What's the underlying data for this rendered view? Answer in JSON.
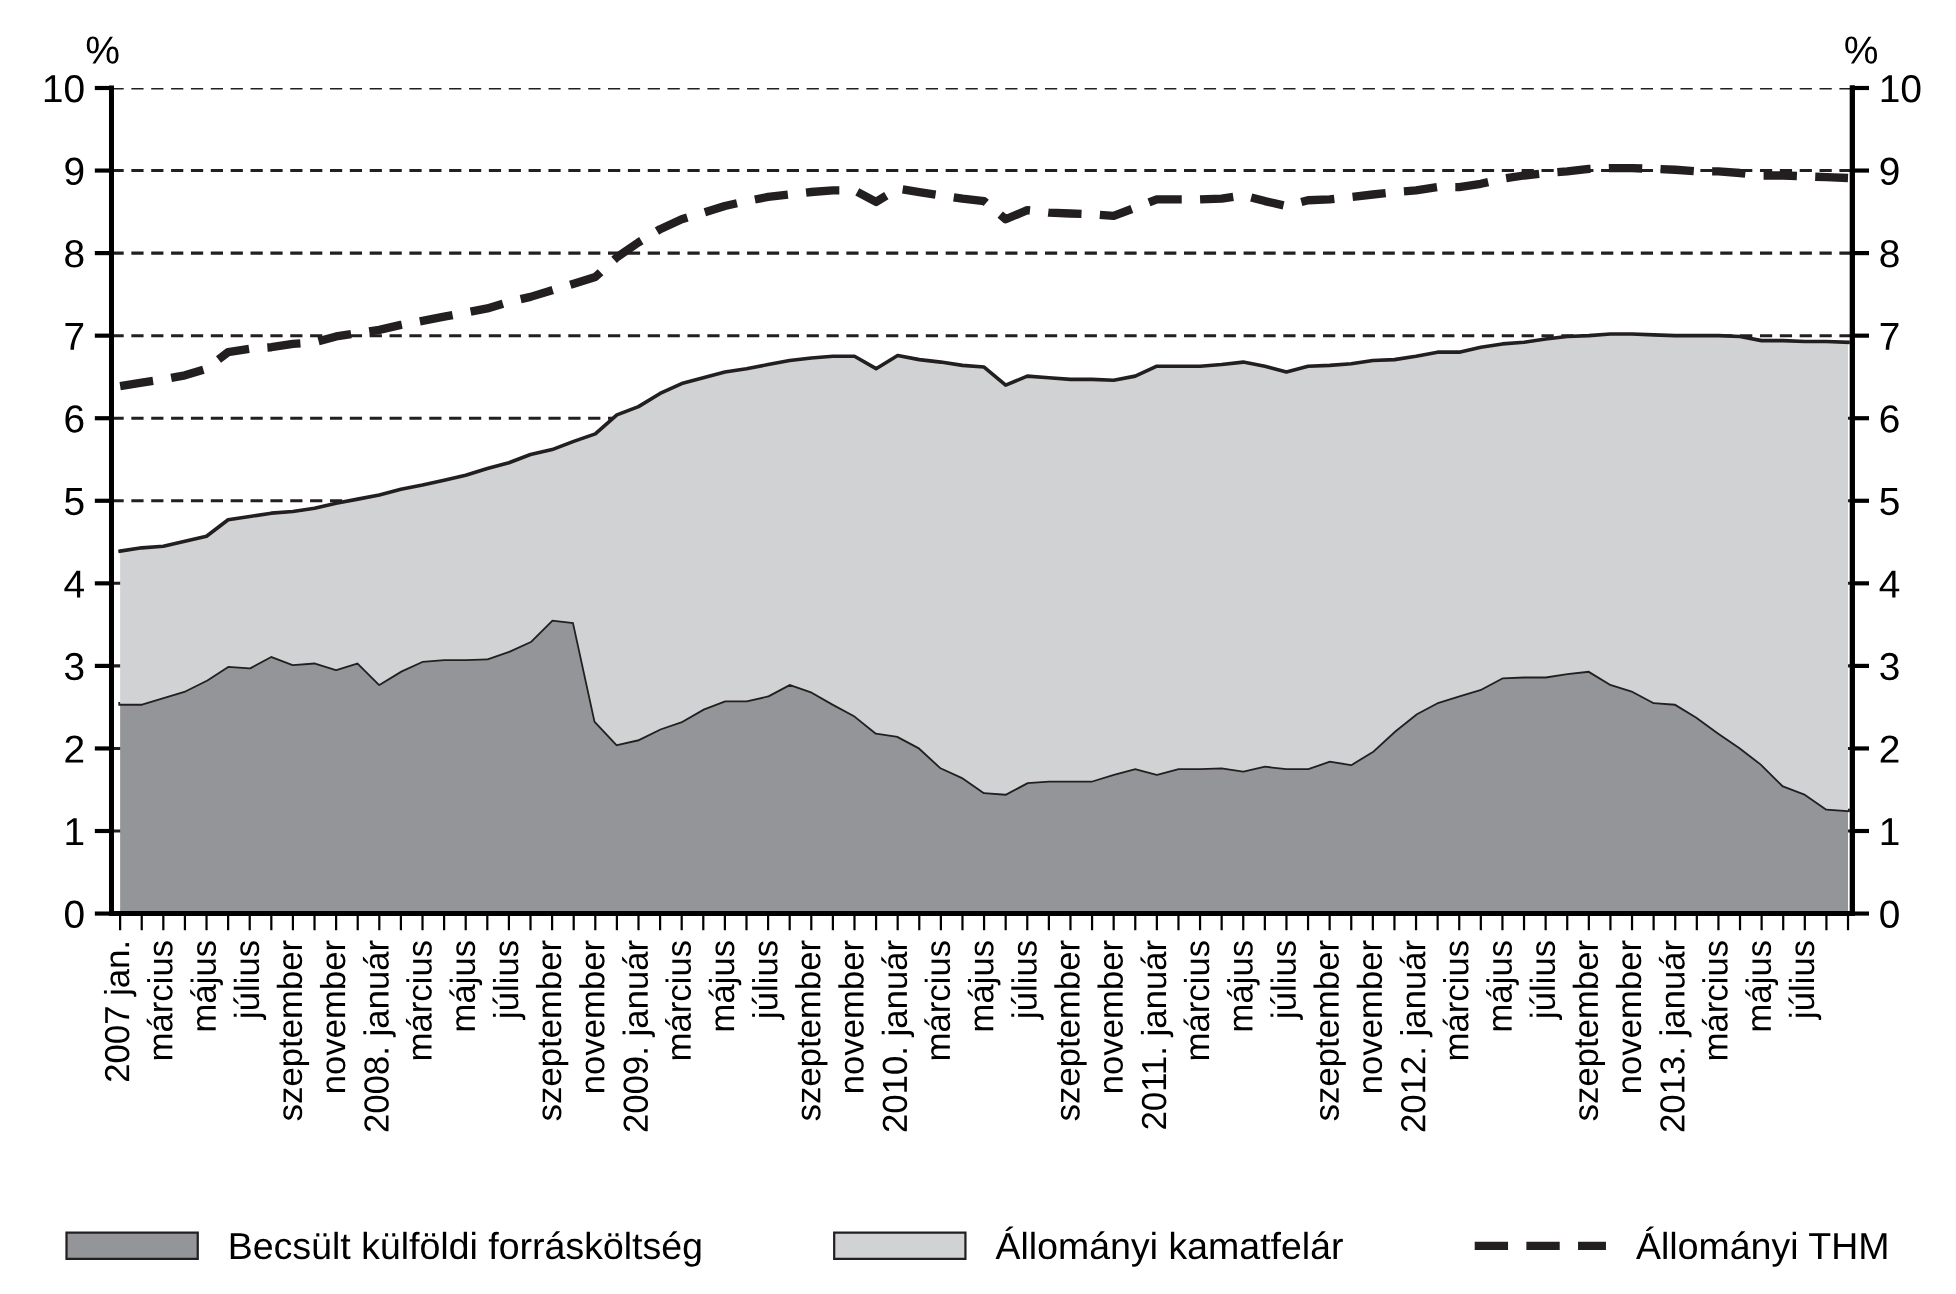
{
  "chart_data": {
    "type": "area",
    "stacked": true,
    "ylabel": "%",
    "y2label": "%",
    "categories": [
      "2007 jan.",
      null,
      "március",
      null,
      "május",
      null,
      "július",
      null,
      "szeptember",
      null,
      "november",
      null,
      "2008. január",
      null,
      "március",
      null,
      "május",
      null,
      "július",
      null,
      "szeptember",
      null,
      "november",
      null,
      "2009. január",
      null,
      "március",
      null,
      "május",
      null,
      "július",
      null,
      "szeptember",
      null,
      "november",
      null,
      "2010. január",
      null,
      "március",
      null,
      "május",
      null,
      "július",
      null,
      "szeptember",
      null,
      "november",
      null,
      "2011. január",
      null,
      "március",
      null,
      "május",
      null,
      "július",
      null,
      "szeptember",
      null,
      "november",
      null,
      "2012. január",
      null,
      "március",
      null,
      "május",
      null,
      "július",
      null,
      "szeptember",
      null,
      "november",
      null,
      "2013. január",
      null,
      "március",
      null,
      "május",
      null,
      "július",
      null,
      null
    ],
    "series": [
      {
        "name": "Becsült külföldi forrásköltség",
        "color": "#939598",
        "values": [
          2.54,
          2.54,
          2.62,
          2.7,
          2.83,
          3.0,
          2.98,
          3.12,
          3.02,
          3.04,
          2.96,
          3.04,
          2.78,
          2.94,
          3.06,
          3.08,
          3.08,
          3.09,
          3.18,
          3.3,
          3.56,
          3.53,
          2.33,
          2.05,
          2.11,
          2.24,
          2.33,
          2.48,
          2.58,
          2.58,
          2.64,
          2.78,
          2.69,
          2.54,
          2.4,
          2.19,
          2.15,
          2.01,
          1.77,
          1.65,
          1.47,
          1.45,
          1.59,
          1.61,
          1.61,
          1.61,
          1.69,
          1.76,
          1.69,
          1.76,
          1.76,
          1.77,
          1.73,
          1.79,
          1.76,
          1.76,
          1.85,
          1.81,
          1.97,
          2.21,
          2.42,
          2.56,
          2.64,
          2.72,
          2.86,
          2.87,
          2.87,
          2.91,
          2.94,
          2.78,
          2.7,
          2.56,
          2.54,
          2.38,
          2.19,
          2.01,
          1.81,
          1.55,
          1.45,
          1.27,
          1.25
        ]
      },
      {
        "name": "Állományi kamatfelár",
        "color": "#d1d2d4",
        "values": [
          1.85,
          1.89,
          1.83,
          1.81,
          1.74,
          1.77,
          1.83,
          1.73,
          1.85,
          1.87,
          2.01,
          1.98,
          2.29,
          2.2,
          2.13,
          2.17,
          2.23,
          2.3,
          2.28,
          2.26,
          2.06,
          2.19,
          3.48,
          3.99,
          4.03,
          4.06,
          4.09,
          4.01,
          3.98,
          4.02,
          4.01,
          3.92,
          4.04,
          4.21,
          4.35,
          4.41,
          4.61,
          4.7,
          4.91,
          4.99,
          5.15,
          4.95,
          4.92,
          4.88,
          4.86,
          4.86,
          4.77,
          4.75,
          4.94,
          4.87,
          4.87,
          4.88,
          4.95,
          4.84,
          4.8,
          4.87,
          4.79,
          4.85,
          4.73,
          4.5,
          4.33,
          4.24,
          4.16,
          4.14,
          4.04,
          4.05,
          4.09,
          4.08,
          4.06,
          4.24,
          4.32,
          4.45,
          4.46,
          4.62,
          4.81,
          4.98,
          5.13,
          5.39,
          5.48,
          5.66,
          5.67
        ]
      },
      {
        "name": "Állományi THM",
        "type": "line",
        "color": "#231f20",
        "line_style": "dashed",
        "values": [
          6.39,
          6.43,
          6.47,
          6.52,
          6.6,
          6.8,
          6.84,
          6.86,
          6.9,
          6.92,
          6.99,
          7.03,
          7.07,
          7.13,
          7.18,
          7.23,
          7.28,
          7.33,
          7.41,
          7.47,
          7.55,
          7.63,
          7.71,
          7.95,
          8.13,
          8.29,
          8.41,
          8.49,
          8.57,
          8.63,
          8.68,
          8.71,
          8.74,
          8.76,
          8.76,
          8.62,
          8.78,
          8.74,
          8.7,
          8.66,
          8.63,
          8.41,
          8.52,
          8.49,
          8.48,
          8.47,
          8.45,
          8.55,
          8.65,
          8.65,
          8.65,
          8.66,
          8.7,
          8.63,
          8.57,
          8.64,
          8.65,
          8.68,
          8.71,
          8.74,
          8.76,
          8.8,
          8.8,
          8.84,
          8.9,
          8.94,
          8.97,
          8.99,
          9.02,
          9.03,
          9.03,
          9.02,
          9.01,
          8.99,
          8.99,
          8.97,
          8.94,
          8.94,
          8.93,
          8.92,
          8.91
        ]
      }
    ],
    "ylim": [
      0,
      10
    ],
    "yticks": [
      0,
      1,
      2,
      3,
      4,
      5,
      6,
      7,
      8,
      9,
      10
    ],
    "y2lim": [
      0,
      10
    ],
    "y2ticks": [
      0,
      1,
      2,
      3,
      4,
      5,
      6,
      7,
      8,
      9,
      10
    ],
    "grid": "y",
    "legend": "bottom",
    "marker": "none"
  }
}
